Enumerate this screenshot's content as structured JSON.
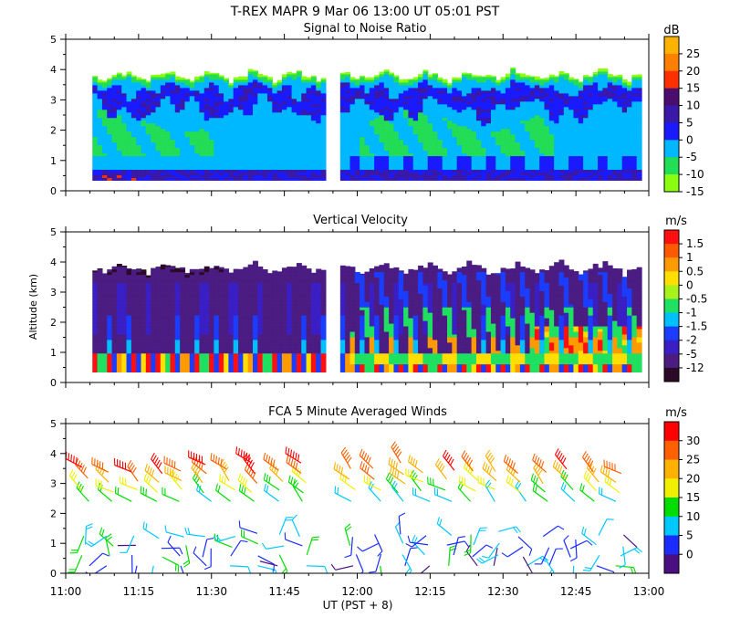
{
  "figure": {
    "title": "T-REX   MAPR   9 Mar 06   13:00 UT   05:01   PST",
    "ylabel": "Altitude (km)",
    "xlabel": "UT  (PST + 8)",
    "x_ticks": [
      "11:00",
      "11:15",
      "11:30",
      "11:45",
      "12:00",
      "12:15",
      "12:30",
      "12:45",
      "13:00"
    ]
  },
  "chart_data": [
    {
      "type": "heatmap",
      "title": "Signal to Noise Ratio",
      "units": "dB",
      "x_range_min": [
        0,
        120
      ],
      "ylim": [
        0,
        5
      ],
      "y_ticks": [
        "0",
        "1",
        "2",
        "3",
        "4",
        "5"
      ],
      "data_gap_min": [
        53,
        56.5
      ],
      "colorbar": {
        "labels": [
          "25",
          "20",
          "15",
          "10",
          "5",
          "0",
          "-5",
          "-10",
          "-15"
        ],
        "colors": [
          "#ffb300",
          "#ff7f00",
          "#ff3000",
          "#4a0f6e",
          "#3a18a8",
          "#1a1aff",
          "#00b8ff",
          "#22dd55",
          "#8cff10"
        ]
      }
    },
    {
      "type": "heatmap",
      "title": "Vertical Velocity",
      "units": "m/s",
      "x_range_min": [
        0,
        120
      ],
      "ylim": [
        0,
        5
      ],
      "y_ticks": [
        "0",
        "1",
        "2",
        "3",
        "4",
        "5"
      ],
      "data_gap_min": [
        53,
        56.5
      ],
      "colorbar": {
        "labels": [
          "1.5",
          "1",
          "0.5",
          "0",
          "-0.5",
          "-1",
          "-1.5",
          "-2",
          "-5",
          "-12"
        ],
        "colors": [
          "#ff1010",
          "#ff5a00",
          "#ff9a00",
          "#ffdf00",
          "#a6f21a",
          "#1fe060",
          "#00bfff",
          "#1a3dff",
          "#3a1fc4",
          "#4b1d83",
          "#2a0a26"
        ]
      }
    },
    {
      "type": "scatter",
      "title": "FCA 5 Minute Averaged Winds",
      "units": "m/s",
      "x_range_min": [
        0,
        120
      ],
      "ylim": [
        0,
        5
      ],
      "y_ticks": [
        "0",
        "1",
        "2",
        "3",
        "4",
        "5"
      ],
      "colorbar": {
        "labels": [
          "30",
          "25",
          "20",
          "15",
          "10",
          "5",
          "0"
        ],
        "colors": [
          "#ff0000",
          "#ff6000",
          "#ffb000",
          "#f0f000",
          "#00dd00",
          "#00c8ff",
          "#1a2cff",
          "#4a1080"
        ]
      },
      "wind_speed_levels_ms": [
        26,
        22,
        18,
        14,
        10,
        6,
        3
      ]
    }
  ]
}
